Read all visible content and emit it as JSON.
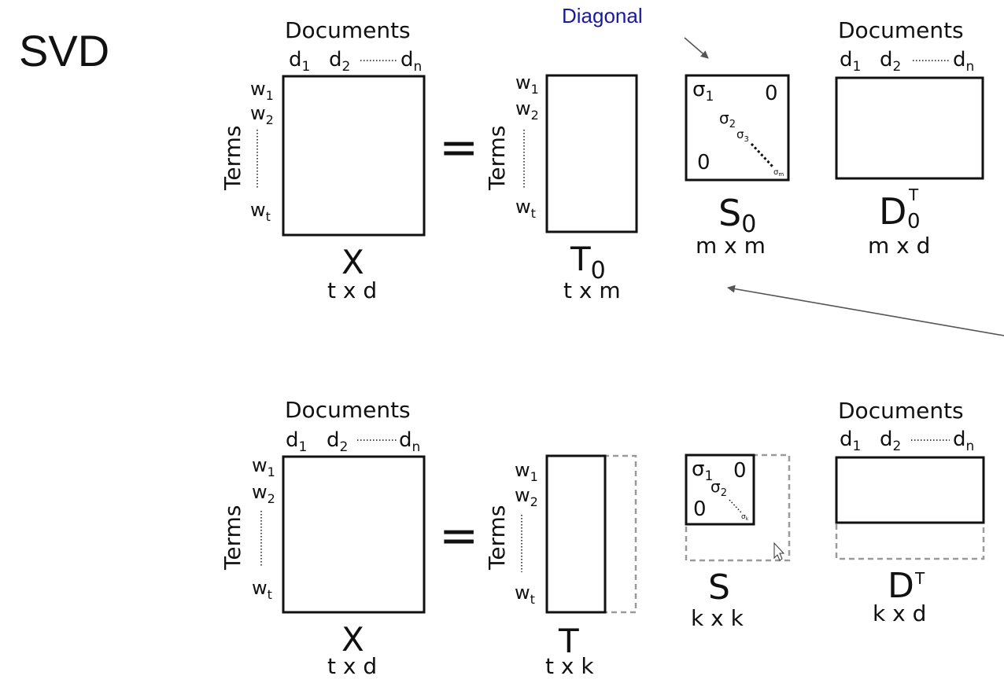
{
  "title": "SVD",
  "diagonal_label": "Diagonal",
  "colors": {
    "callout": "#1a1aa0",
    "lines": "#111111",
    "dashed": "#9a9a9a",
    "arrow": "#555555"
  },
  "common": {
    "documents": "Documents",
    "terms": "Terms",
    "equals": "=",
    "d": "d",
    "d_sub1": "1",
    "d_sub2": "2",
    "d_subn": "n",
    "w": "w",
    "w_sub1": "1",
    "w_sub2": "2",
    "w_subt": "t",
    "sigma": "σ",
    "s_sub1": "1",
    "s_sub2": "2",
    "s_sub3": "3",
    "s_subm": "m",
    "s_subk": "k",
    "zero": "0"
  },
  "full": {
    "x_name": "X",
    "x_dims": "t x d",
    "t_name": "T",
    "t_sub": "0",
    "t_dims": "t x m",
    "s_name": "S",
    "s_sub": "0",
    "s_dims": "m x m",
    "d_name": "D",
    "d_sub": "0",
    "d_sup": "T",
    "d_dims": "m x d"
  },
  "reduced": {
    "x_name": "X",
    "x_dims": "t x d",
    "t_name": "T",
    "t_dims": "t x k",
    "s_name": "S",
    "s_dims": "k x k",
    "d_name": "D",
    "d_sup": "T",
    "d_dims": "k x d"
  }
}
